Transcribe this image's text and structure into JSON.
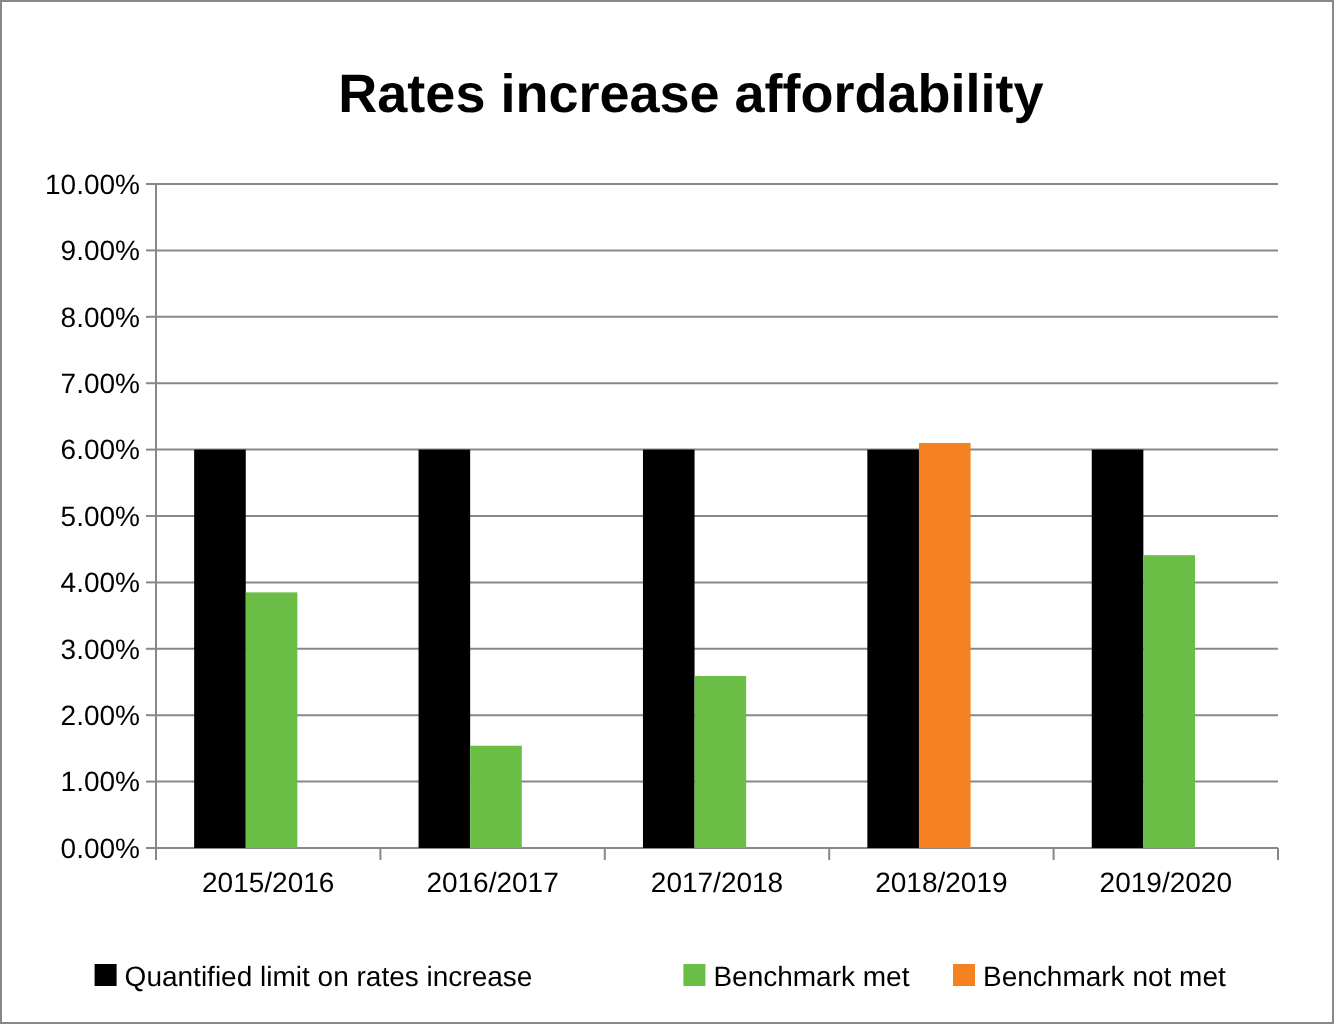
{
  "chart_data": {
    "type": "bar",
    "title": "Rates increase affordability",
    "categories": [
      "2015/2016",
      "2016/2017",
      "2017/2018",
      "2018/2019",
      "2019/2020"
    ],
    "series": [
      {
        "name": "Quantified limit on rates increase",
        "color": "#000000",
        "values": [
          6,
          6,
          6,
          6,
          6
        ]
      },
      {
        "name": "Benchmark met",
        "color": "#6abd45",
        "values": [
          3.85,
          1.54,
          2.59,
          null,
          4.41
        ]
      },
      {
        "name": "Benchmark not met",
        "color": "#f58220",
        "values": [
          null,
          null,
          null,
          6.1,
          null
        ]
      }
    ],
    "ylim": [
      0,
      10
    ],
    "yticks": [
      {
        "value": 0,
        "label": "0.00%"
      },
      {
        "value": 1,
        "label": "1.00%"
      },
      {
        "value": 2,
        "label": "2.00%"
      },
      {
        "value": 3,
        "label": "3.00%"
      },
      {
        "value": 4,
        "label": "4.00%"
      },
      {
        "value": 5,
        "label": "5.00%"
      },
      {
        "value": 6,
        "label": "6.00%"
      },
      {
        "value": 7,
        "label": "7.00%"
      },
      {
        "value": 8,
        "label": "8.00%"
      },
      {
        "value": 9,
        "label": "9.00%"
      },
      {
        "value": 10,
        "label": "10.00%"
      }
    ],
    "grid": "y",
    "legend": "bottom"
  }
}
